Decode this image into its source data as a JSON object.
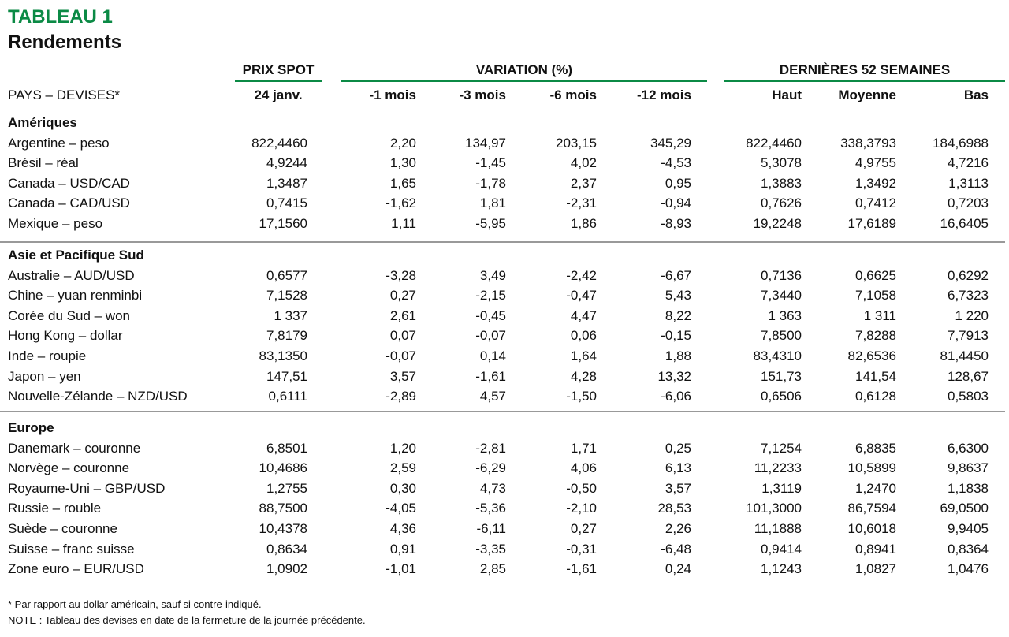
{
  "header": {
    "label": "TABLEAU 1",
    "title": "Rendements"
  },
  "groups": [
    "PRIX SPOT",
    "VARIATION (%)",
    "DERNIÈRES 52 SEMAINES"
  ],
  "columns": [
    "PAYS – DEVISES*",
    "24 janv.",
    "-1 mois",
    "-3 mois",
    "-6 mois",
    "-12 mois",
    "Haut",
    "Moyenne",
    "Bas"
  ],
  "sections": [
    {
      "name": "Amériques",
      "rows": [
        [
          "Argentine – peso",
          "822,4460",
          "2,20",
          "134,97",
          "203,15",
          "345,29",
          "822,4460",
          "338,3793",
          "184,6988"
        ],
        [
          "Brésil – réal",
          "4,9244",
          "1,30",
          "-1,45",
          "4,02",
          "-4,53",
          "5,3078",
          "4,9755",
          "4,7216"
        ],
        [
          "Canada – USD/CAD",
          "1,3487",
          "1,65",
          "-1,78",
          "2,37",
          "0,95",
          "1,3883",
          "1,3492",
          "1,3113"
        ],
        [
          "Canada – CAD/USD",
          "0,7415",
          "-1,62",
          "1,81",
          "-2,31",
          "-0,94",
          "0,7626",
          "0,7412",
          "0,7203"
        ],
        [
          "Mexique – peso",
          "17,1560",
          "1,11",
          "-5,95",
          "1,86",
          "-8,93",
          "19,2248",
          "17,6189",
          "16,6405"
        ]
      ]
    },
    {
      "name": "Asie et Pacifique Sud",
      "rows": [
        [
          "Australie – AUD/USD",
          "0,6577",
          "-3,28",
          "3,49",
          "-2,42",
          "-6,67",
          "0,7136",
          "0,6625",
          "0,6292"
        ],
        [
          "Chine – yuan renminbi",
          "7,1528",
          "0,27",
          "-2,15",
          "-0,47",
          "5,43",
          "7,3440",
          "7,1058",
          "6,7323"
        ],
        [
          "Corée du Sud – won",
          "1 337",
          "2,61",
          "-0,45",
          "4,47",
          "8,22",
          "1 363",
          "1 311",
          "1 220"
        ],
        [
          "Hong Kong – dollar",
          "7,8179",
          "0,07",
          "-0,07",
          "0,06",
          "-0,15",
          "7,8500",
          "7,8288",
          "7,7913"
        ],
        [
          "Inde – roupie",
          "83,1350",
          "-0,07",
          "0,14",
          "1,64",
          "1,88",
          "83,4310",
          "82,6536",
          "81,4450"
        ],
        [
          "Japon – yen",
          "147,51",
          "3,57",
          "-1,61",
          "4,28",
          "13,32",
          "151,73",
          "141,54",
          "128,67"
        ],
        [
          "Nouvelle-Zélande – NZD/USD",
          "0,6111",
          "-2,89",
          "4,57",
          "-1,50",
          "-6,06",
          "0,6506",
          "0,6128",
          "0,5803"
        ]
      ]
    },
    {
      "name": "Europe",
      "rows": [
        [
          "Danemark – couronne",
          "6,8501",
          "1,20",
          "-2,81",
          "1,71",
          "0,25",
          "7,1254",
          "6,8835",
          "6,6300"
        ],
        [
          "Norvège – couronne",
          "10,4686",
          "2,59",
          "-6,29",
          "4,06",
          "6,13",
          "11,2233",
          "10,5899",
          "9,8637"
        ],
        [
          "Royaume-Uni – GBP/USD",
          "1,2755",
          "0,30",
          "4,73",
          "-0,50",
          "3,57",
          "1,3119",
          "1,2470",
          "1,1838"
        ],
        [
          "Russie – rouble",
          "88,7500",
          "-4,05",
          "-5,36",
          "-2,10",
          "28,53",
          "101,3000",
          "86,7594",
          "69,0500"
        ],
        [
          "Suède – couronne",
          "10,4378",
          "4,36",
          "-6,11",
          "0,27",
          "2,26",
          "11,1888",
          "10,6018",
          "9,9405"
        ],
        [
          "Suisse – franc suisse",
          "0,8634",
          "0,91",
          "-3,35",
          "-0,31",
          "-6,48",
          "0,9414",
          "0,8941",
          "0,8364"
        ],
        [
          "Zone euro – EUR/USD",
          "1,0902",
          "-1,01",
          "2,85",
          "-1,61",
          "0,24",
          "1,1243",
          "1,0827",
          "1,0476"
        ]
      ]
    }
  ],
  "footnotes": [
    "* Par rapport au dollar américain, sauf si contre-indiqué.",
    "NOTE : Tableau des devises en date de la fermeture de la journée précédente."
  ]
}
